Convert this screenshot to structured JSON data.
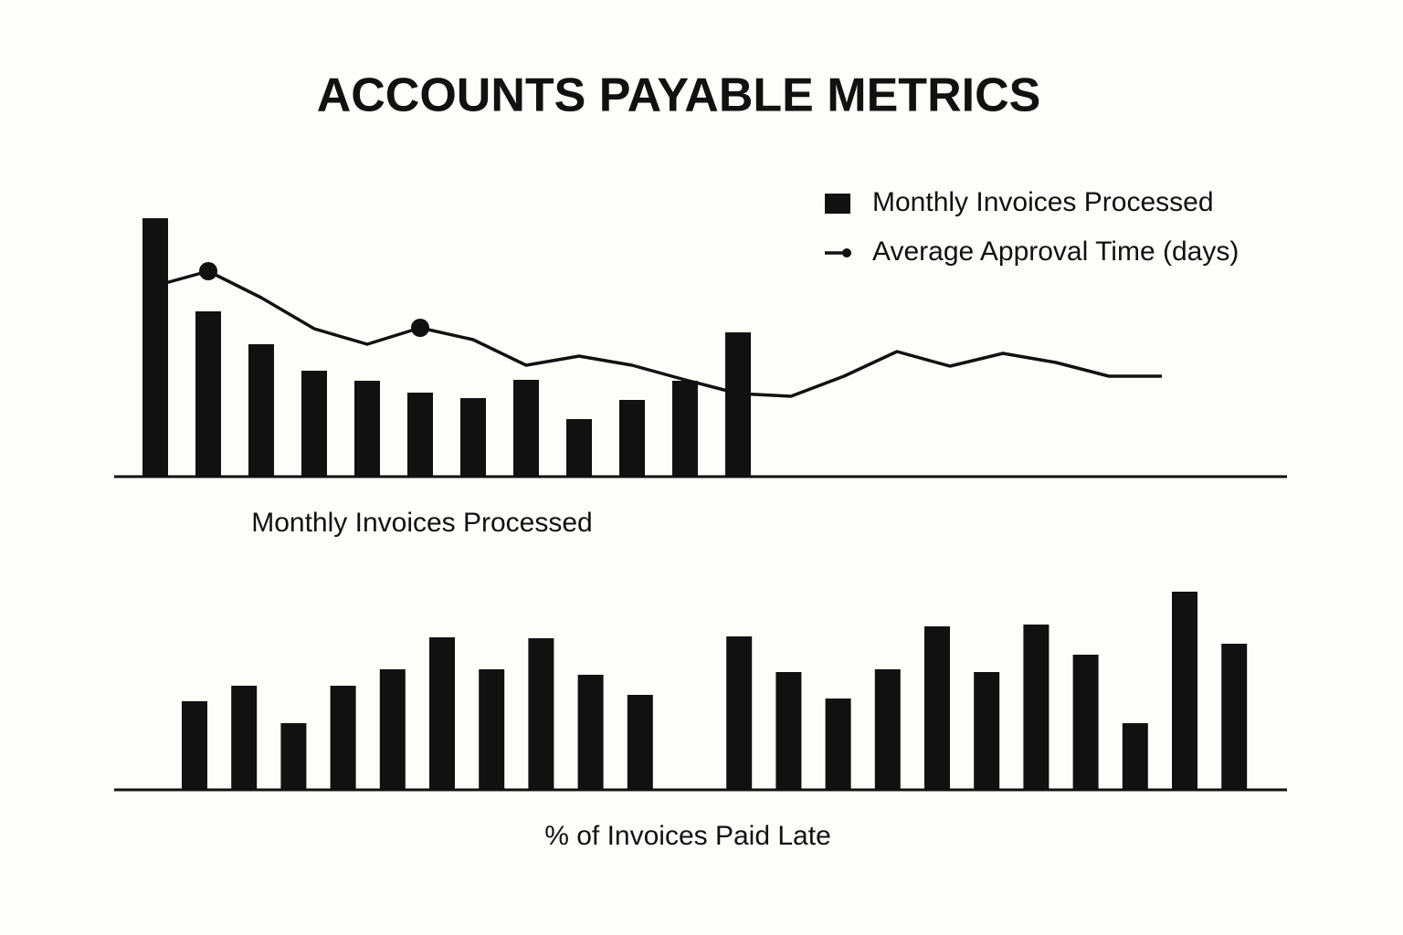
{
  "title": "ACCOUNTS PAYABLE METRICS",
  "chart_data": [
    {
      "type": "bar_line",
      "categories": [
        null,
        null,
        null,
        null,
        null,
        null,
        null,
        null,
        null,
        null,
        null,
        null,
        null,
        null,
        null,
        null,
        null,
        null,
        null,
        null
      ],
      "series": [
        {
          "name": "Monthly Invoices Processed",
          "type": "bar",
          "color": "#111111",
          "values": [
            283,
            181,
            145,
            116,
            105,
            92,
            86,
            106,
            63,
            84,
            105,
            158,
            null,
            null,
            null,
            null,
            null,
            null,
            null,
            null
          ]
        },
        {
          "name": "Average Approval Time (days)",
          "type": "line",
          "color": "#111111",
          "values": [
            209,
            225,
            196,
            162,
            145,
            163,
            150,
            122,
            132,
            122,
            106,
            91,
            88,
            110,
            137,
            121,
            135,
            125,
            110,
            110
          ],
          "markers": [
            1,
            5
          ]
        }
      ],
      "ylim": [
        0,
        300
      ],
      "x_label": "Monthly Invoices Processed",
      "legend": "top-right"
    },
    {
      "type": "bar",
      "categories": [
        null,
        null,
        null,
        null,
        null,
        null,
        null,
        null,
        null,
        null,
        null,
        null,
        null,
        null,
        null,
        null,
        null,
        null,
        null,
        null,
        null,
        null
      ],
      "series": [
        {
          "name": null,
          "type": "bar",
          "color": "#111111",
          "values": [
            97,
            114,
            73,
            114,
            132,
            167,
            132,
            166,
            126,
            104,
            null,
            168,
            129,
            100,
            132,
            179,
            129,
            181,
            148,
            73,
            217,
            160
          ]
        }
      ],
      "ylim": [
        0,
        250
      ],
      "x_label": "% of Invoices Paid Late"
    }
  ]
}
